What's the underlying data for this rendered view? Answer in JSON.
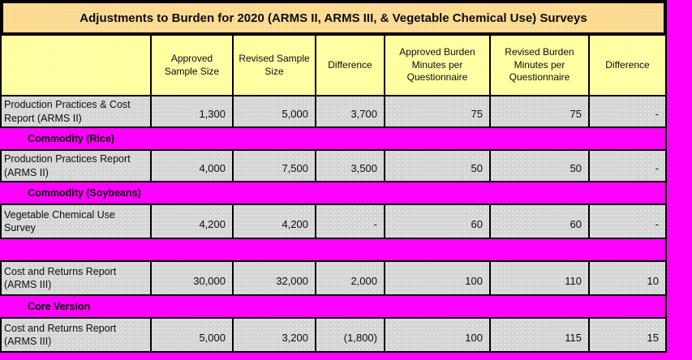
{
  "title": "Adjustments to Burden for 2020 (ARMS II, ARMS III, & Vegetable Chemical Use) Surveys",
  "table": {
    "columns": [
      "",
      "Approved Sample Size",
      "Revised Sample Size",
      "Difference",
      "Approved Burden Minutes per Questionnaire",
      "Revised Burden Minutes per Questionnaire",
      "Difference"
    ],
    "rows": [
      {
        "type": "data",
        "label": "Production Practices & Cost Report (ARMS II)",
        "values": [
          "1,300",
          "5,000",
          "3,700",
          "75",
          "75",
          "-"
        ]
      },
      {
        "type": "separator",
        "label": "Commodity  (Rice)"
      },
      {
        "type": "data",
        "label": "Production Practices Report (ARMS II)",
        "values": [
          "4,000",
          "7,500",
          "3,500",
          "50",
          "50",
          "-"
        ]
      },
      {
        "type": "separator",
        "label": "Commodity  (Soybeans)"
      },
      {
        "type": "data",
        "label": "Vegetable Chemical Use Survey",
        "values": [
          "4,200",
          "4,200",
          "-",
          "60",
          "60",
          "-"
        ]
      },
      {
        "type": "separator",
        "label": ""
      },
      {
        "type": "data",
        "label": "Cost and Returns Report (ARMS III)",
        "values": [
          "30,000",
          "32,000",
          "2,000",
          "100",
          "110",
          "10"
        ]
      },
      {
        "type": "separator",
        "label": "Core Version"
      },
      {
        "type": "data",
        "label": "Cost and Returns Report (ARMS III)",
        "values": [
          "5,000",
          "3,200",
          "(1,800)",
          "100",
          "115",
          "15"
        ]
      }
    ]
  },
  "colors": {
    "canvas_bg": "#FF00FF",
    "title_bg": "#FBD98F",
    "header_bg": "#FFFF9E",
    "data_row_bg": "#D6D6D6",
    "separator_bg": "#FF00FF",
    "border": "#000000",
    "text": "#0D0D0D"
  }
}
